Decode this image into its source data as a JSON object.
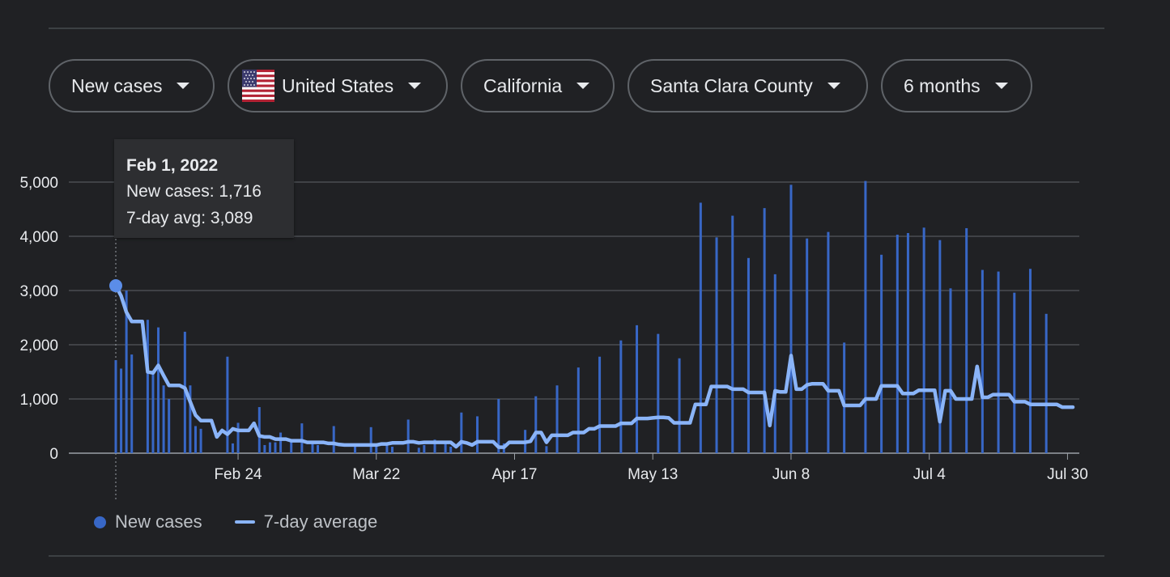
{
  "filters": [
    {
      "label": "New cases",
      "has_flag": false
    },
    {
      "label": "United States",
      "has_flag": true
    },
    {
      "label": "California",
      "has_flag": false
    },
    {
      "label": "Santa Clara County",
      "has_flag": false
    },
    {
      "label": "6 months",
      "has_flag": false
    }
  ],
  "tooltip": {
    "date": "Feb 1, 2022",
    "cases_line": "New cases: 1,716",
    "avg_line": "7-day avg: 3,089"
  },
  "legend": {
    "cases_label": "New cases",
    "avg_label": "7-day average"
  },
  "colors": {
    "background": "#202124",
    "bar": "#3867c6",
    "avg_line": "#8ab4f8",
    "highlight_point": "#5b8de8",
    "grid": "#5f6368"
  },
  "chart_data": {
    "type": "bar",
    "title": "",
    "xlabel": "",
    "ylabel": "",
    "ylim": [
      0,
      5000
    ],
    "y_ticks": [
      "0",
      "1,000",
      "2,000",
      "3,000",
      "4,000",
      "5,000"
    ],
    "x_ticks": [
      {
        "day": 23,
        "label": "Feb 24"
      },
      {
        "day": 49,
        "label": "Mar 22"
      },
      {
        "day": 75,
        "label": "Apr 17"
      },
      {
        "day": 101,
        "label": "May 13"
      },
      {
        "day": 127,
        "label": "Jun 8"
      },
      {
        "day": 153,
        "label": "Jul 4"
      },
      {
        "day": 179,
        "label": "Jul 30"
      }
    ],
    "start_date": "Feb 1, 2022",
    "highlight_day": 0,
    "series": [
      {
        "name": "New cases",
        "kind": "bar",
        "points": [
          [
            0,
            1716
          ],
          [
            1,
            1560
          ],
          [
            2,
            3000
          ],
          [
            3,
            1820
          ],
          [
            6,
            2460
          ],
          [
            7,
            1500
          ],
          [
            8,
            2320
          ],
          [
            9,
            1250
          ],
          [
            10,
            1000
          ],
          [
            13,
            2240
          ],
          [
            14,
            1250
          ],
          [
            15,
            500
          ],
          [
            16,
            450
          ],
          [
            21,
            1780
          ],
          [
            22,
            180
          ],
          [
            23,
            560
          ],
          [
            27,
            850
          ],
          [
            28,
            150
          ],
          [
            29,
            200
          ],
          [
            30,
            200
          ],
          [
            31,
            380
          ],
          [
            33,
            250
          ],
          [
            35,
            550
          ],
          [
            37,
            200
          ],
          [
            38,
            150
          ],
          [
            41,
            500
          ],
          [
            45,
            120
          ],
          [
            48,
            480
          ],
          [
            49,
            120
          ],
          [
            51,
            150
          ],
          [
            52,
            120
          ],
          [
            55,
            620
          ],
          [
            57,
            100
          ],
          [
            58,
            150
          ],
          [
            60,
            250
          ],
          [
            62,
            230
          ],
          [
            63,
            120
          ],
          [
            65,
            750
          ],
          [
            68,
            680
          ],
          [
            72,
            1000
          ],
          [
            73,
            180
          ],
          [
            77,
            430
          ],
          [
            79,
            1050
          ],
          [
            81,
            130
          ],
          [
            83,
            1250
          ],
          [
            87,
            1580
          ],
          [
            91,
            1780
          ],
          [
            95,
            2080
          ],
          [
            98,
            2360
          ],
          [
            102,
            2200
          ],
          [
            106,
            1750
          ],
          [
            110,
            4620
          ],
          [
            113,
            3980
          ],
          [
            116,
            4380
          ],
          [
            119,
            3600
          ],
          [
            122,
            4520
          ],
          [
            124,
            3300
          ],
          [
            127,
            4950
          ],
          [
            130,
            3960
          ],
          [
            134,
            4080
          ],
          [
            137,
            2040
          ],
          [
            141,
            5020
          ],
          [
            144,
            3660
          ],
          [
            147,
            4030
          ],
          [
            149,
            4060
          ],
          [
            152,
            4160
          ],
          [
            155,
            3930
          ],
          [
            157,
            3040
          ],
          [
            160,
            4150
          ],
          [
            163,
            3380
          ],
          [
            166,
            3350
          ],
          [
            169,
            2960
          ],
          [
            172,
            3400
          ],
          [
            175,
            2570
          ]
        ]
      },
      {
        "name": "7-day average",
        "kind": "line",
        "points": [
          [
            0,
            3089
          ],
          [
            1,
            2900
          ],
          [
            2,
            2600
          ],
          [
            3,
            2430
          ],
          [
            4,
            2430
          ],
          [
            5,
            2430
          ],
          [
            6,
            1500
          ],
          [
            7,
            1480
          ],
          [
            8,
            1620
          ],
          [
            9,
            1430
          ],
          [
            10,
            1250
          ],
          [
            11,
            1250
          ],
          [
            12,
            1250
          ],
          [
            13,
            1200
          ],
          [
            14,
            950
          ],
          [
            15,
            700
          ],
          [
            16,
            600
          ],
          [
            17,
            600
          ],
          [
            18,
            600
          ],
          [
            19,
            300
          ],
          [
            20,
            420
          ],
          [
            21,
            350
          ],
          [
            22,
            450
          ],
          [
            23,
            420
          ],
          [
            24,
            420
          ],
          [
            25,
            420
          ],
          [
            26,
            550
          ],
          [
            27,
            320
          ],
          [
            28,
            300
          ],
          [
            29,
            300
          ],
          [
            30,
            260
          ],
          [
            31,
            260
          ],
          [
            32,
            260
          ],
          [
            33,
            230
          ],
          [
            34,
            230
          ],
          [
            35,
            230
          ],
          [
            36,
            200
          ],
          [
            37,
            200
          ],
          [
            38,
            200
          ],
          [
            39,
            200
          ],
          [
            40,
            180
          ],
          [
            41,
            180
          ],
          [
            42,
            160
          ],
          [
            43,
            150
          ],
          [
            44,
            150
          ],
          [
            45,
            150
          ],
          [
            46,
            150
          ],
          [
            47,
            150
          ],
          [
            48,
            150
          ],
          [
            49,
            150
          ],
          [
            50,
            170
          ],
          [
            51,
            170
          ],
          [
            52,
            190
          ],
          [
            53,
            190
          ],
          [
            54,
            190
          ],
          [
            55,
            210
          ],
          [
            56,
            210
          ],
          [
            57,
            190
          ],
          [
            58,
            200
          ],
          [
            59,
            200
          ],
          [
            60,
            200
          ],
          [
            61,
            200
          ],
          [
            62,
            200
          ],
          [
            63,
            200
          ],
          [
            64,
            120
          ],
          [
            65,
            210
          ],
          [
            66,
            190
          ],
          [
            67,
            150
          ],
          [
            68,
            210
          ],
          [
            69,
            210
          ],
          [
            70,
            210
          ],
          [
            71,
            210
          ],
          [
            72,
            110
          ],
          [
            73,
            110
          ],
          [
            74,
            200
          ],
          [
            75,
            200
          ],
          [
            76,
            200
          ],
          [
            77,
            200
          ],
          [
            78,
            220
          ],
          [
            79,
            380
          ],
          [
            80,
            380
          ],
          [
            81,
            200
          ],
          [
            82,
            330
          ],
          [
            83,
            330
          ],
          [
            84,
            330
          ],
          [
            85,
            330
          ],
          [
            86,
            380
          ],
          [
            87,
            380
          ],
          [
            88,
            380
          ],
          [
            89,
            450
          ],
          [
            90,
            450
          ],
          [
            91,
            500
          ],
          [
            92,
            500
          ],
          [
            93,
            500
          ],
          [
            94,
            500
          ],
          [
            95,
            550
          ],
          [
            96,
            550
          ],
          [
            97,
            550
          ],
          [
            98,
            640
          ],
          [
            99,
            640
          ],
          [
            100,
            640
          ],
          [
            101,
            650
          ],
          [
            102,
            660
          ],
          [
            103,
            660
          ],
          [
            104,
            650
          ],
          [
            105,
            560
          ],
          [
            106,
            560
          ],
          [
            107,
            560
          ],
          [
            108,
            560
          ],
          [
            109,
            900
          ],
          [
            110,
            900
          ],
          [
            111,
            900
          ],
          [
            112,
            1230
          ],
          [
            113,
            1230
          ],
          [
            114,
            1230
          ],
          [
            115,
            1230
          ],
          [
            116,
            1180
          ],
          [
            117,
            1180
          ],
          [
            118,
            1180
          ],
          [
            119,
            1120
          ],
          [
            120,
            1120
          ],
          [
            121,
            1120
          ],
          [
            122,
            1120
          ],
          [
            123,
            510
          ],
          [
            124,
            1150
          ],
          [
            125,
            1130
          ],
          [
            126,
            1130
          ],
          [
            127,
            1800
          ],
          [
            128,
            1180
          ],
          [
            129,
            1180
          ],
          [
            130,
            1260
          ],
          [
            131,
            1280
          ],
          [
            132,
            1280
          ],
          [
            133,
            1280
          ],
          [
            134,
            1150
          ],
          [
            135,
            1150
          ],
          [
            136,
            1150
          ],
          [
            137,
            880
          ],
          [
            138,
            880
          ],
          [
            139,
            880
          ],
          [
            140,
            880
          ],
          [
            141,
            1000
          ],
          [
            142,
            1000
          ],
          [
            143,
            1000
          ],
          [
            144,
            1240
          ],
          [
            145,
            1240
          ],
          [
            146,
            1240
          ],
          [
            147,
            1240
          ],
          [
            148,
            1100
          ],
          [
            149,
            1100
          ],
          [
            150,
            1100
          ],
          [
            151,
            1160
          ],
          [
            152,
            1160
          ],
          [
            153,
            1160
          ],
          [
            154,
            1160
          ],
          [
            155,
            580
          ],
          [
            156,
            1150
          ],
          [
            157,
            1150
          ],
          [
            158,
            1000
          ],
          [
            159,
            1000
          ],
          [
            160,
            1000
          ],
          [
            161,
            1000
          ],
          [
            162,
            1600
          ],
          [
            163,
            1030
          ],
          [
            164,
            1030
          ],
          [
            165,
            1080
          ],
          [
            166,
            1080
          ],
          [
            167,
            1080
          ],
          [
            168,
            1080
          ],
          [
            169,
            950
          ],
          [
            170,
            950
          ],
          [
            171,
            950
          ],
          [
            172,
            900
          ],
          [
            173,
            900
          ],
          [
            174,
            900
          ],
          [
            175,
            900
          ],
          [
            176,
            900
          ],
          [
            177,
            900
          ],
          [
            178,
            850
          ],
          [
            179,
            850
          ],
          [
            180,
            850
          ]
        ]
      }
    ]
  }
}
